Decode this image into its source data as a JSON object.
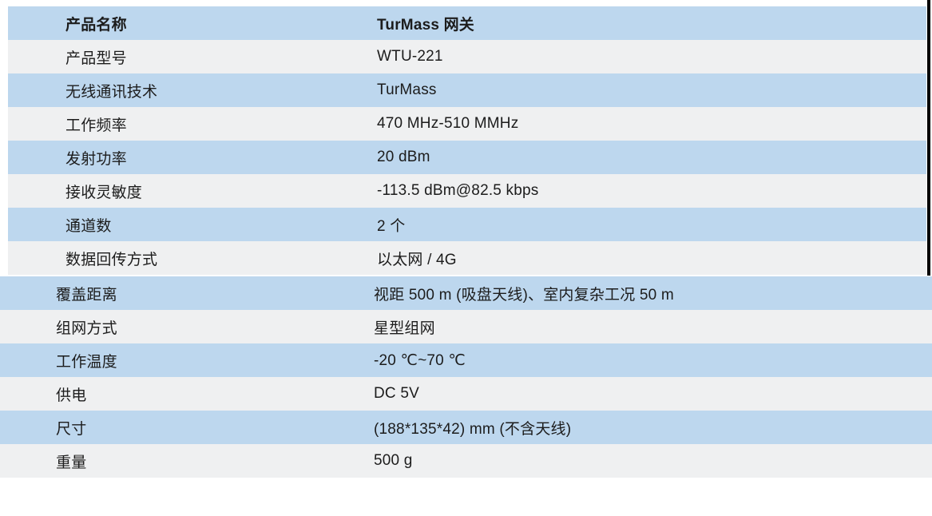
{
  "colors": {
    "row_blue": "#bdd7ee",
    "row_gray": "#eff0f1",
    "text": "#1c1c1c",
    "page_border": "#000000"
  },
  "table": {
    "header": {
      "label": "产品名称",
      "value": "TurMass 网关"
    },
    "sections": [
      {
        "rows": [
          {
            "label": "产品名称",
            "value": "TurMass 网关",
            "shade": "blue",
            "header": true
          },
          {
            "label": "产品型号",
            "value": "WTU-221",
            "shade": "gray",
            "header": false
          },
          {
            "label": "无线通讯技术",
            "value": "TurMass",
            "shade": "blue",
            "header": false
          },
          {
            "label": "工作频率",
            "value": "470 MHz-510 MMHz",
            "shade": "gray",
            "header": false
          },
          {
            "label": "发射功率",
            "value": "20 dBm",
            "shade": "blue",
            "header": false
          },
          {
            "label": "接收灵敏度",
            "value": "-113.5 dBm@82.5 kbps",
            "shade": "gray",
            "header": false
          },
          {
            "label": "通道数",
            "value": "2 个",
            "shade": "blue",
            "header": false
          },
          {
            "label": "数据回传方式",
            "value": "以太网 / 4G",
            "shade": "gray",
            "header": false
          }
        ]
      },
      {
        "rows": [
          {
            "label": "覆盖距离",
            "value": "视距 500 m (吸盘天线)、室内复杂工况 50 m",
            "shade": "blue",
            "header": false
          },
          {
            "label": "组网方式",
            "value": "星型组网",
            "shade": "gray",
            "header": false
          },
          {
            "label": "工作温度",
            "value": "-20 ℃~70 ℃",
            "shade": "blue",
            "header": false
          },
          {
            "label": "供电",
            "value": "DC 5V",
            "shade": "gray",
            "header": false
          },
          {
            "label": "尺寸",
            "value": "(188*135*42) mm (不含天线)",
            "shade": "blue",
            "header": false
          },
          {
            "label": "重量",
            "value": "500 g",
            "shade": "gray",
            "header": false
          }
        ]
      }
    ]
  }
}
